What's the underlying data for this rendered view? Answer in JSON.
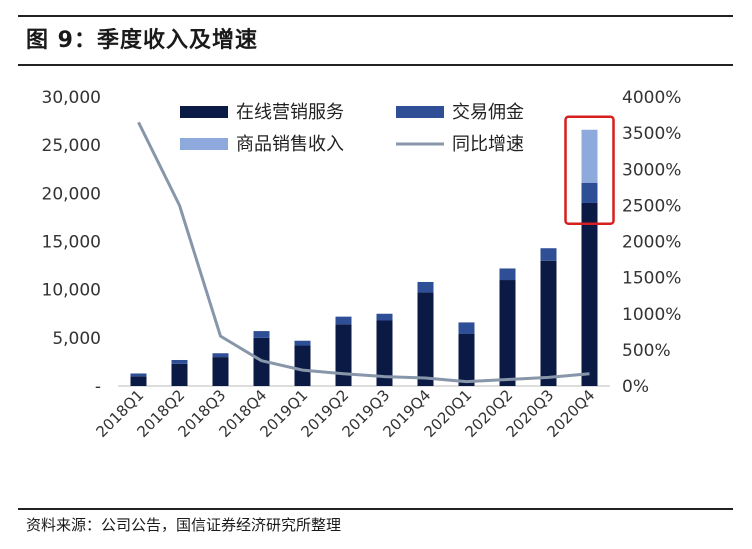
{
  "figure": {
    "title": "图 9：季度收入及增速",
    "source": "资料来源：公司公告，国信证券经济研究所整理"
  },
  "colors": {
    "online": "#0b1a45",
    "commission": "#2e4f96",
    "goods": "#8ea9dc",
    "growth": "#8896a9",
    "highlight": "#d61f1f"
  },
  "chart_data": {
    "type": "bar",
    "stacked": true,
    "categories": [
      "2018Q1",
      "2018Q2",
      "2018Q3",
      "2018Q4",
      "2019Q1",
      "2019Q2",
      "2019Q3",
      "2019Q4",
      "2020Q1",
      "2020Q2",
      "2020Q3",
      "2020Q4"
    ],
    "series": [
      {
        "name": "在线营销服务",
        "axis": "left",
        "type": "bar",
        "values": [
          1000,
          2300,
          3000,
          5000,
          4200,
          6400,
          6800,
          9700,
          5400,
          11000,
          13000,
          19000
        ]
      },
      {
        "name": "交易佣金",
        "axis": "left",
        "type": "bar",
        "values": [
          300,
          400,
          400,
          700,
          500,
          800,
          700,
          1100,
          1200,
          1200,
          1300,
          2100
        ]
      },
      {
        "name": "商品销售收入",
        "axis": "left",
        "type": "bar",
        "values": [
          0,
          0,
          0,
          0,
          0,
          0,
          0,
          0,
          0,
          0,
          0,
          5500
        ]
      },
      {
        "name": "同比增速",
        "axis": "right",
        "type": "line",
        "values": [
          3650,
          2500,
          690,
          350,
          220,
          170,
          130,
          110,
          60,
          90,
          120,
          170
        ]
      }
    ],
    "left_axis": {
      "min": 0,
      "max": 30000,
      "ticks": [
        "-",
        "5,000",
        "10,000",
        "15,000",
        "20,000",
        "25,000",
        "30,000"
      ]
    },
    "right_axis": {
      "min": 0,
      "max": 4000,
      "unit": "%",
      "ticks": [
        "0%",
        "500%",
        "1000%",
        "1500%",
        "2000%",
        "2500%",
        "3000%",
        "3500%",
        "4000%"
      ]
    },
    "legend": {
      "placement": "top"
    },
    "grid": false,
    "highlight_category": "2020Q4"
  }
}
